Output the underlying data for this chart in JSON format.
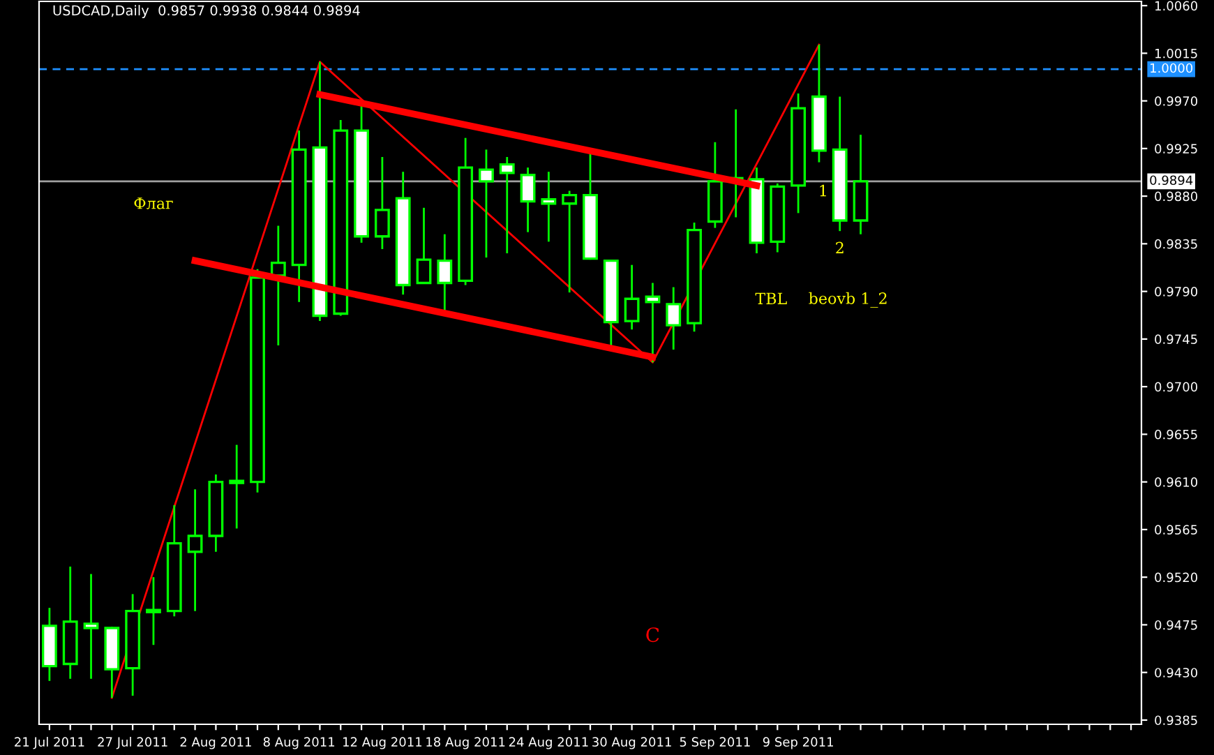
{
  "chart_data": {
    "type": "candlestick",
    "title": "USDCAD,Daily  0.9857 0.9938 0.9844 0.9894",
    "categories": [
      "21 Jul 2011",
      null,
      null,
      null,
      "27 Jul 2011",
      null,
      null,
      null,
      "2 Aug 2011",
      null,
      null,
      null,
      "8 Aug 2011",
      null,
      null,
      null,
      "12 Aug 2011",
      null,
      null,
      null,
      "18 Aug 2011",
      null,
      null,
      null,
      "24 Aug 2011",
      null,
      null,
      null,
      "30 Aug 2011",
      null,
      null,
      null,
      "5 Sep 2011",
      null,
      null,
      null,
      "9 Sep 2011",
      null,
      null,
      null,
      null,
      null,
      null,
      null,
      null,
      null,
      null,
      null,
      null,
      null,
      null,
      null,
      null
    ],
    "ohlc": [
      [
        0.9474,
        0.9491,
        0.9422,
        0.9436
      ],
      [
        0.9438,
        0.953,
        0.9424,
        0.9478
      ],
      [
        0.9476,
        0.9523,
        0.9424,
        0.9472
      ],
      [
        0.9472,
        0.9473,
        0.9406,
        0.9433
      ],
      [
        0.9434,
        0.9504,
        0.9408,
        0.9488
      ],
      [
        0.9487,
        0.952,
        0.9456,
        0.9489
      ],
      [
        0.9488,
        0.9588,
        0.9483,
        0.9552
      ],
      [
        0.9544,
        0.9603,
        0.9488,
        0.9559
      ],
      [
        0.9559,
        0.9617,
        0.9544,
        0.961
      ],
      [
        0.9611,
        0.9645,
        0.9566,
        0.9609
      ],
      [
        0.961,
        0.9811,
        0.96,
        0.9803
      ],
      [
        0.9805,
        0.9852,
        0.9739,
        0.9817
      ],
      [
        0.9815,
        0.9942,
        0.978,
        0.9924
      ],
      [
        0.9926,
        1.0007,
        0.9762,
        0.9767
      ],
      [
        0.9769,
        0.9952,
        0.9767,
        0.9942
      ],
      [
        0.9942,
        0.9968,
        0.9836,
        0.9842
      ],
      [
        0.9842,
        0.9917,
        0.983,
        0.9867
      ],
      [
        0.9878,
        0.9903,
        0.9787,
        0.9796
      ],
      [
        0.9798,
        0.9869,
        0.9797,
        0.982
      ],
      [
        0.9819,
        0.9844,
        0.9772,
        0.9798
      ],
      [
        0.98,
        0.9935,
        0.9796,
        0.9907
      ],
      [
        0.9905,
        0.9924,
        0.9822,
        0.9894
      ],
      [
        0.991,
        0.9917,
        0.9826,
        0.9902
      ],
      [
        0.99,
        0.9907,
        0.9846,
        0.9875
      ],
      [
        0.9877,
        0.9903,
        0.9837,
        0.9873
      ],
      [
        0.9873,
        0.9885,
        0.9789,
        0.9881
      ],
      [
        0.9881,
        0.9921,
        0.982,
        0.9821
      ],
      [
        0.9819,
        0.982,
        0.9737,
        0.9761
      ],
      [
        0.9762,
        0.9815,
        0.9754,
        0.9783
      ],
      [
        0.9785,
        0.9798,
        0.9723,
        0.978
      ],
      [
        0.9778,
        0.9794,
        0.9735,
        0.9758
      ],
      [
        0.976,
        0.9855,
        0.9752,
        0.9848
      ],
      [
        0.9856,
        0.9931,
        0.985,
        0.9894
      ],
      [
        0.9895,
        0.9962,
        0.986,
        0.9897
      ],
      [
        0.9896,
        0.9907,
        0.9826,
        0.9836
      ],
      [
        0.9837,
        0.9892,
        0.9827,
        0.9889
      ],
      [
        0.989,
        0.9977,
        0.9864,
        0.9963
      ],
      [
        0.9974,
        1.0023,
        0.9912,
        0.9923
      ],
      [
        0.9924,
        0.9974,
        0.9847,
        0.9857
      ],
      [
        0.9857,
        0.9938,
        0.9844,
        0.9894
      ],
      null,
      null,
      null,
      null,
      null,
      null,
      null,
      null,
      null,
      null,
      null,
      null,
      null
    ],
    "series": [
      {
        "type": "line",
        "color": "#ff0000",
        "values": [
          null,
          null,
          null,
          0.9406,
          null,
          null,
          null,
          null,
          null,
          null,
          null,
          null,
          null,
          1.0007,
          null,
          null,
          null,
          null,
          null,
          null,
          null,
          null,
          null,
          null,
          null,
          null,
          null,
          null,
          null,
          0.9723,
          null,
          null,
          null,
          null,
          null,
          null,
          null,
          1.0023,
          null,
          null,
          null,
          null,
          null,
          null,
          null,
          null,
          null,
          null,
          null,
          null,
          null,
          null,
          null
        ]
      },
      {
        "type": "line",
        "color": "#ff0000",
        "values": [
          null,
          null,
          null,
          null,
          null,
          null,
          null,
          null,
          null,
          null,
          null,
          null,
          null,
          0.9976,
          null,
          null,
          null,
          null,
          null,
          null,
          null,
          null,
          null,
          null,
          null,
          null,
          null,
          null,
          null,
          null,
          null,
          null,
          null,
          null,
          0.989,
          null,
          null,
          null,
          null,
          null,
          null,
          null,
          null,
          null,
          null,
          null,
          null,
          null,
          null,
          null,
          null,
          null,
          null
        ]
      },
      {
        "type": "line",
        "color": "#ff0000",
        "values": [
          null,
          null,
          null,
          null,
          null,
          null,
          null,
          0.9819,
          null,
          null,
          null,
          null,
          null,
          null,
          null,
          null,
          null,
          null,
          null,
          null,
          null,
          null,
          null,
          null,
          null,
          null,
          null,
          null,
          null,
          0.9728,
          null,
          null,
          null,
          null,
          null,
          null,
          null,
          null,
          null,
          null,
          null,
          null,
          null,
          null,
          null,
          null,
          null,
          null,
          null,
          null,
          null,
          null,
          null
        ]
      }
    ],
    "ylim": [
      0.9381,
      1.0064
    ],
    "yticks": [
      "1.0060",
      "1.0015",
      "0.9970",
      "0.9925",
      "0.9880",
      "0.9835",
      "0.9790",
      "0.9745",
      "0.9700",
      "0.9655",
      "0.9610",
      "0.9565",
      "0.9520",
      "0.9475",
      "0.9430",
      "0.9385"
    ],
    "ref_lines": [
      {
        "axis": "y",
        "value": 1.0,
        "label": "1.0000",
        "color": "#1e90ff",
        "line_style": "dashed"
      },
      {
        "axis": "y",
        "value": 0.9894,
        "label": "0.9894",
        "color": "#a0a0a0",
        "line_style": "solid"
      }
    ],
    "annotations": [
      "Флаг",
      "TBL",
      "beovb 1_2",
      "1",
      "2",
      "C"
    ],
    "grid": false,
    "legend": false
  }
}
